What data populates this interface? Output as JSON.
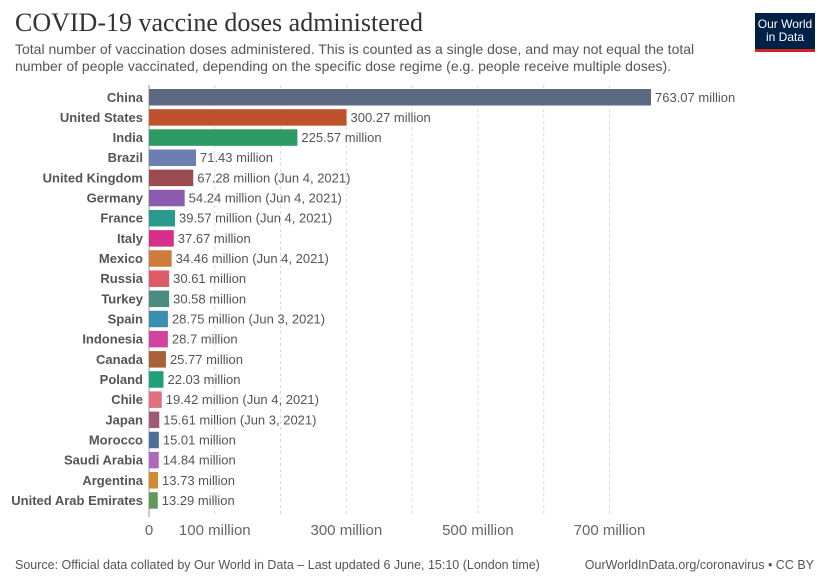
{
  "header": {
    "title": "COVID-19 vaccine doses administered",
    "subtitle": "Total number of vaccination doses administered. This is counted as a single dose, and may not equal the total number of people vaccinated, depending on the specific dose regime (e.g. people receive multiple doses).",
    "logo_line1": "Our World",
    "logo_line2": "in Data",
    "logo_color": "#002147",
    "logo_accent": "#ce261e"
  },
  "footer": {
    "source": "Source: Official data collated by Our World in Data – Last updated 6 June, 15:10 (London time)",
    "credit": "OurWorldInData.org/coronavirus • CC BY"
  },
  "chart_data": {
    "type": "bar",
    "orientation": "horizontal",
    "title": "COVID-19 vaccine doses administered",
    "xlim": [
      0,
      763.07
    ],
    "grid": true,
    "x_ticks": [
      {
        "value": 0,
        "label": "0"
      },
      {
        "value": 100,
        "label": "100 million"
      },
      {
        "value": 300,
        "label": "300 million"
      },
      {
        "value": 500,
        "label": "500 million"
      },
      {
        "value": 700,
        "label": "700 million"
      }
    ],
    "x_gridlines": [
      100,
      200,
      300,
      400,
      500,
      600,
      700
    ],
    "bars": [
      {
        "category": "China",
        "value": 763.07,
        "label": "763.07 million",
        "color": "#5b6a82"
      },
      {
        "category": "United States",
        "value": 300.27,
        "label": "300.27 million",
        "color": "#c0522b"
      },
      {
        "category": "India",
        "value": 225.57,
        "label": "225.57 million",
        "color": "#2c9a62"
      },
      {
        "category": "Brazil",
        "value": 71.43,
        "label": "71.43 million",
        "color": "#6d7fb0"
      },
      {
        "category": "United Kingdom",
        "value": 67.28,
        "label": "67.28 million (Jun 4, 2021)",
        "color": "#9b4a52"
      },
      {
        "category": "Germany",
        "value": 54.24,
        "label": "54.24 million (Jun 4, 2021)",
        "color": "#8b5bb0"
      },
      {
        "category": "France",
        "value": 39.57,
        "label": "39.57 million (Jun 4, 2021)",
        "color": "#2a9a8e"
      },
      {
        "category": "Italy",
        "value": 37.67,
        "label": "37.67 million",
        "color": "#d6308a"
      },
      {
        "category": "Mexico",
        "value": 34.46,
        "label": "34.46 million (Jun 4, 2021)",
        "color": "#d07a3c"
      },
      {
        "category": "Russia",
        "value": 30.61,
        "label": "30.61 million",
        "color": "#dd5a68"
      },
      {
        "category": "Turkey",
        "value": 30.58,
        "label": "30.58 million",
        "color": "#4a8c80"
      },
      {
        "category": "Spain",
        "value": 28.75,
        "label": "28.75 million (Jun 3, 2021)",
        "color": "#3a8fb0"
      },
      {
        "category": "Indonesia",
        "value": 28.7,
        "label": "28.7 million",
        "color": "#d044a0"
      },
      {
        "category": "Canada",
        "value": 25.77,
        "label": "25.77 million",
        "color": "#a8623a"
      },
      {
        "category": "Poland",
        "value": 22.03,
        "label": "22.03 million",
        "color": "#20a07a"
      },
      {
        "category": "Chile",
        "value": 19.42,
        "label": "19.42 million (Jun 4, 2021)",
        "color": "#e07080"
      },
      {
        "category": "Japan",
        "value": 15.61,
        "label": "15.61 million (Jun 3, 2021)",
        "color": "#a05a78"
      },
      {
        "category": "Morocco",
        "value": 15.01,
        "label": "15.01 million",
        "color": "#4f6f96"
      },
      {
        "category": "Saudi Arabia",
        "value": 14.84,
        "label": "14.84 million",
        "color": "#b069b8"
      },
      {
        "category": "Argentina",
        "value": 13.73,
        "label": "13.73 million",
        "color": "#d08a30"
      },
      {
        "category": "United Arab Emirates",
        "value": 13.29,
        "label": "13.29 million",
        "color": "#5f9a58"
      }
    ]
  }
}
